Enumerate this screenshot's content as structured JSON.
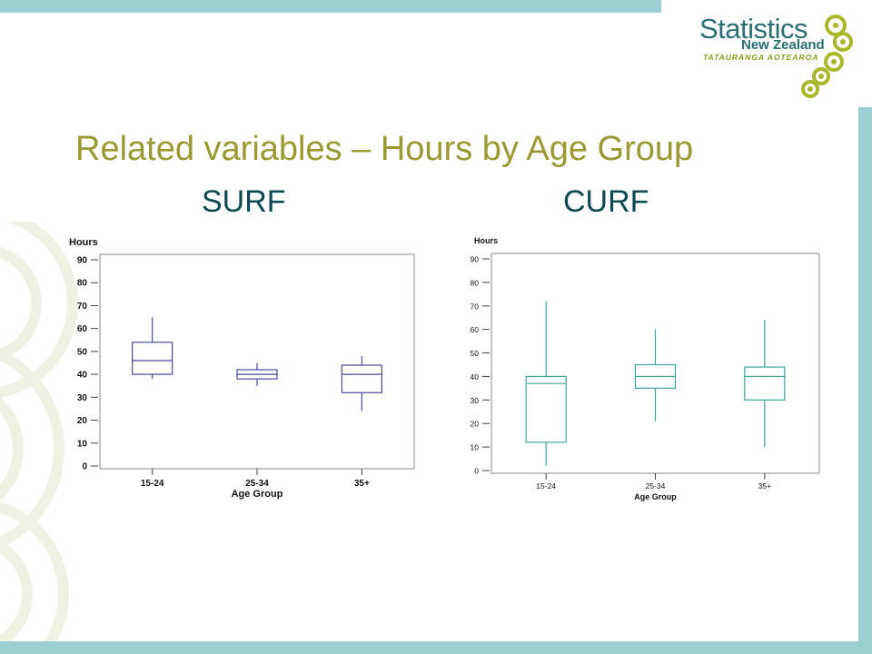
{
  "slide": {
    "title": "Related variables – Hours by Age Group",
    "left_heading": "SURF",
    "right_heading": "CURF"
  },
  "logo": {
    "main": "Statistics",
    "sub": "New Zealand",
    "maori": "TATAURANGA AOTEAROA"
  },
  "colors": {
    "title": "#9a9a33",
    "heading": "#0e4a4f",
    "border": "#9ccfd0",
    "surf_box": "#4a4aa0",
    "curf_box": "#3fa39c"
  },
  "chart_data": [
    {
      "type": "boxplot",
      "ylabel": "Hours",
      "xlabel": "Age Group",
      "categories": [
        "15-24",
        "25-34",
        "35+"
      ],
      "ylim": [
        0,
        90
      ],
      "yticks": [
        0,
        10,
        20,
        30,
        40,
        50,
        60,
        70,
        80,
        90
      ],
      "boxes": [
        {
          "whisker_low": 38,
          "q1": 40,
          "median": 46,
          "q3": 54,
          "whisker_high": 65
        },
        {
          "whisker_low": 35,
          "q1": 38,
          "median": 40,
          "q3": 42,
          "whisker_high": 45
        },
        {
          "whisker_low": 24,
          "q1": 32,
          "median": 40,
          "q3": 44,
          "whisker_high": 48
        }
      ]
    },
    {
      "type": "boxplot",
      "ylabel": "Hours",
      "xlabel": "Age Group",
      "categories": [
        "15-24",
        "25-34",
        "35+"
      ],
      "ylim": [
        0,
        90
      ],
      "yticks": [
        0,
        10,
        20,
        30,
        40,
        50,
        60,
        70,
        80,
        90
      ],
      "boxes": [
        {
          "whisker_low": 2,
          "q1": 12,
          "median": 37,
          "q3": 40,
          "whisker_high": 72
        },
        {
          "whisker_low": 21,
          "q1": 35,
          "median": 40,
          "q3": 45,
          "whisker_high": 60
        },
        {
          "whisker_low": 10,
          "q1": 30,
          "median": 40,
          "q3": 44,
          "whisker_high": 64
        }
      ]
    }
  ]
}
